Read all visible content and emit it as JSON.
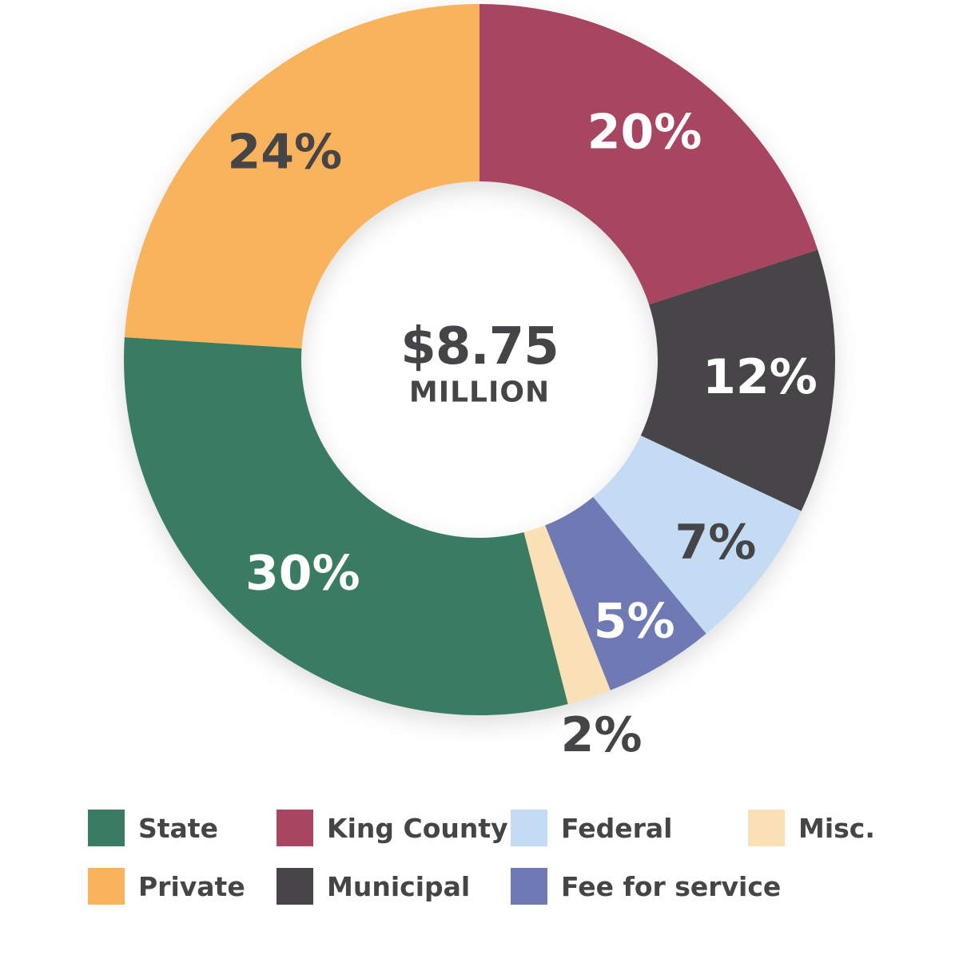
{
  "chart_data": {
    "type": "pie",
    "subtype": "donut",
    "title": "",
    "background": "#FFFFFF",
    "text_color": "#454447",
    "center_label": {
      "value": "$8.75",
      "unit": "MILLION"
    },
    "categories": [
      "King County",
      "Municipal",
      "Federal",
      "Fee for service",
      "Misc.",
      "State",
      "Private"
    ],
    "values": [
      20,
      12,
      7,
      5,
      2,
      30,
      24
    ],
    "start_angle_deg": 0,
    "direction": "clockwise",
    "legend_position": "bottom",
    "slices": [
      {
        "label": "King County",
        "value": 20,
        "pct_label": "20%",
        "color": "#A84560",
        "label_color": "#FFFFFF",
        "label_r": 0.79
      },
      {
        "label": "Municipal",
        "value": 12,
        "pct_label": "12%",
        "color": "#474548",
        "label_color": "#FFFFFF",
        "label_r": 0.79
      },
      {
        "label": "Federal",
        "value": 7,
        "pct_label": "7%",
        "color": "#C3DBF3",
        "label_color": "#454447",
        "label_r": 0.84
      },
      {
        "label": "Fee for service",
        "value": 5,
        "pct_label": "5%",
        "color": "#6F7AB4",
        "label_color": "#FFFFFF",
        "label_r": 0.855
      },
      {
        "label": "Misc.",
        "value": 2,
        "pct_label": "2%",
        "color": "#F9E0B7",
        "label_color": "#454447",
        "label_r": 1.11
      },
      {
        "label": "State",
        "value": 30,
        "pct_label": "30%",
        "color": "#397C61",
        "label_color": "#FFFFFF",
        "label_r": 0.78
      },
      {
        "label": "Private",
        "value": 24,
        "pct_label": "24%",
        "color": "#F8B35C",
        "label_color": "#454447",
        "label_r": 0.8
      }
    ],
    "legend": [
      {
        "label": "State",
        "color": "#397C61"
      },
      {
        "label": "King County",
        "color": "#A84560"
      },
      {
        "label": "Federal",
        "color": "#C3DBF3"
      },
      {
        "label": "Misc.",
        "color": "#F9E0B7"
      },
      {
        "label": "Private",
        "color": "#F8B35C"
      },
      {
        "label": "Municipal",
        "color": "#474548"
      },
      {
        "label": "Fee for service",
        "color": "#6F7AB4"
      }
    ]
  }
}
